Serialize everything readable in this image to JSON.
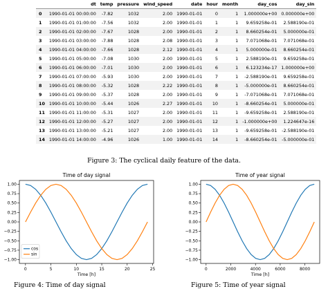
{
  "table": {
    "columns": [
      "",
      "dt",
      "temp",
      "pressure",
      "wind_speed",
      "date",
      "hour",
      "month",
      "day_cos",
      "day_sin"
    ],
    "rows": [
      [
        "0",
        "1990-01-01 00:00:00",
        "-7.82",
        "1032",
        "2.00",
        "1990-01-01",
        "0",
        "1",
        "1.000000e+00",
        "0.000000e+00"
      ],
      [
        "1",
        "1990-01-01 01:00:00",
        "-7.56",
        "1032",
        "2.00",
        "1990-01-01",
        "1",
        "1",
        "9.659258e-01",
        "2.588190e-01"
      ],
      [
        "2",
        "1990-01-01 02:00:00",
        "-7.67",
        "1028",
        "2.00",
        "1990-01-01",
        "2",
        "1",
        "8.660254e-01",
        "5.000000e-01"
      ],
      [
        "3",
        "1990-01-01 03:00:00",
        "-7.88",
        "1028",
        "2.08",
        "1990-01-01",
        "3",
        "1",
        "7.071068e-01",
        "7.071068e-01"
      ],
      [
        "4",
        "1990-01-01 04:00:00",
        "-7.66",
        "1028",
        "2.12",
        "1990-01-01",
        "4",
        "1",
        "5.000000e-01",
        "8.660254e-01"
      ],
      [
        "5",
        "1990-01-01 05:00:00",
        "-7.08",
        "1030",
        "2.00",
        "1990-01-01",
        "5",
        "1",
        "2.588190e-01",
        "9.659258e-01"
      ],
      [
        "6",
        "1990-01-01 06:00:00",
        "-7.01",
        "1030",
        "2.00",
        "1990-01-01",
        "6",
        "1",
        "6.123234e-17",
        "1.000000e+00"
      ],
      [
        "7",
        "1990-01-01 07:00:00",
        "-5.93",
        "1030",
        "2.00",
        "1990-01-01",
        "7",
        "1",
        "-2.588190e-01",
        "9.659258e-01"
      ],
      [
        "8",
        "1990-01-01 08:00:00",
        "-5.32",
        "1028",
        "2.22",
        "1990-01-01",
        "8",
        "1",
        "-5.000000e-01",
        "8.660254e-01"
      ],
      [
        "9",
        "1990-01-01 09:00:00",
        "-5.37",
        "1028",
        "2.00",
        "1990-01-01",
        "9",
        "1",
        "-7.071068e-01",
        "7.071068e-01"
      ],
      [
        "10",
        "1990-01-01 10:00:00",
        "-5.44",
        "1026",
        "2.27",
        "1990-01-01",
        "10",
        "1",
        "-8.660254e-01",
        "5.000000e-01"
      ],
      [
        "11",
        "1990-01-01 11:00:00",
        "-5.31",
        "1027",
        "2.00",
        "1990-01-01",
        "11",
        "1",
        "-9.659258e-01",
        "2.588190e-01"
      ],
      [
        "12",
        "1990-01-01 12:00:00",
        "-5.27",
        "1027",
        "2.00",
        "1990-01-01",
        "12",
        "1",
        "-1.000000e+00",
        "1.224647e-16"
      ],
      [
        "13",
        "1990-01-01 13:00:00",
        "-5.21",
        "1027",
        "2.00",
        "1990-01-01",
        "13",
        "1",
        "-9.659258e-01",
        "-2.588190e-01"
      ],
      [
        "14",
        "1990-01-01 14:00:00",
        "-4.96",
        "1026",
        "1.00",
        "1990-01-01",
        "14",
        "1",
        "-8.660254e-01",
        "-5.000000e-01"
      ]
    ]
  },
  "captions": {
    "fig3": "Figure 3: The cyclical daily feature of the data.",
    "fig4": "Figure 4: Time of day signal",
    "fig5": "Figure 5: Time of year signal"
  },
  "chart_data": [
    {
      "type": "line",
      "title": "Time of day signal",
      "xlabel": "Time [h]",
      "ylabel": "",
      "xlim": [
        -1.2,
        25.2
      ],
      "ylim": [
        -1.1,
        1.1
      ],
      "xticks": [
        0,
        5,
        10,
        15,
        20,
        25
      ],
      "yticks": [
        -1.0,
        -0.75,
        -0.5,
        -0.25,
        0.0,
        0.25,
        0.5,
        0.75,
        1.0
      ],
      "ytick_labels": [
        "−1.00",
        "−0.75",
        "−0.50",
        "−0.25",
        "0.00",
        "0.25",
        "0.50",
        "0.75",
        "1.00"
      ],
      "x": [
        0,
        1,
        2,
        3,
        4,
        5,
        6,
        7,
        8,
        9,
        10,
        11,
        12,
        13,
        14,
        15,
        16,
        17,
        18,
        19,
        20,
        21,
        22,
        23,
        24
      ],
      "series": [
        {
          "name": "cos",
          "color": "#1f77b4",
          "values": [
            1.0,
            0.966,
            0.866,
            0.707,
            0.5,
            0.259,
            0.0,
            -0.259,
            -0.5,
            -0.707,
            -0.866,
            -0.966,
            -1.0,
            -0.966,
            -0.866,
            -0.707,
            -0.5,
            -0.259,
            0.0,
            0.259,
            0.5,
            0.707,
            0.866,
            0.966,
            1.0
          ]
        },
        {
          "name": "sin",
          "color": "#ff7f0e",
          "values": [
            0.0,
            0.259,
            0.5,
            0.707,
            0.866,
            0.966,
            1.0,
            0.966,
            0.866,
            0.707,
            0.5,
            0.259,
            0.0,
            -0.259,
            -0.5,
            -0.707,
            -0.866,
            -0.966,
            -1.0,
            -0.966,
            -0.866,
            -0.707,
            -0.5,
            -0.259,
            0.0
          ]
        }
      ],
      "legend": "lower-left",
      "grid": false
    },
    {
      "type": "line",
      "title": "Time of year signal",
      "xlabel": "Time [h]",
      "ylabel": "",
      "xlim": [
        -438,
        9198
      ],
      "ylim": [
        -1.1,
        1.1
      ],
      "xticks": [
        0,
        2000,
        4000,
        6000,
        8000
      ],
      "yticks": [
        -1.0,
        -0.75,
        -0.5,
        -0.25,
        0.0,
        0.25,
        0.5,
        0.75,
        1.0
      ],
      "ytick_labels": [
        "−1.00",
        "−0.75",
        "−0.50",
        "−0.25",
        "0.00",
        "0.25",
        "0.50",
        "0.75",
        "1.00"
      ],
      "x": [
        0,
        365,
        730,
        1095,
        1460,
        1825,
        2190,
        2555,
        2920,
        3285,
        3650,
        4015,
        4380,
        4745,
        5110,
        5475,
        5840,
        6205,
        6570,
        6935,
        7300,
        7665,
        8030,
        8395,
        8760
      ],
      "series": [
        {
          "name": "cos",
          "color": "#1f77b4",
          "values": [
            1.0,
            0.966,
            0.866,
            0.707,
            0.5,
            0.259,
            0.0,
            -0.259,
            -0.5,
            -0.707,
            -0.866,
            -0.966,
            -1.0,
            -0.966,
            -0.866,
            -0.707,
            -0.5,
            -0.259,
            0.0,
            0.259,
            0.5,
            0.707,
            0.866,
            0.966,
            1.0
          ]
        },
        {
          "name": "sin",
          "color": "#ff7f0e",
          "values": [
            0.0,
            0.259,
            0.5,
            0.707,
            0.866,
            0.966,
            1.0,
            0.966,
            0.866,
            0.707,
            0.5,
            0.259,
            0.0,
            -0.259,
            -0.5,
            -0.707,
            -0.866,
            -0.966,
            -1.0,
            -0.966,
            -0.866,
            -0.707,
            -0.5,
            -0.259,
            0.0
          ]
        }
      ],
      "legend": "none",
      "grid": false
    }
  ]
}
